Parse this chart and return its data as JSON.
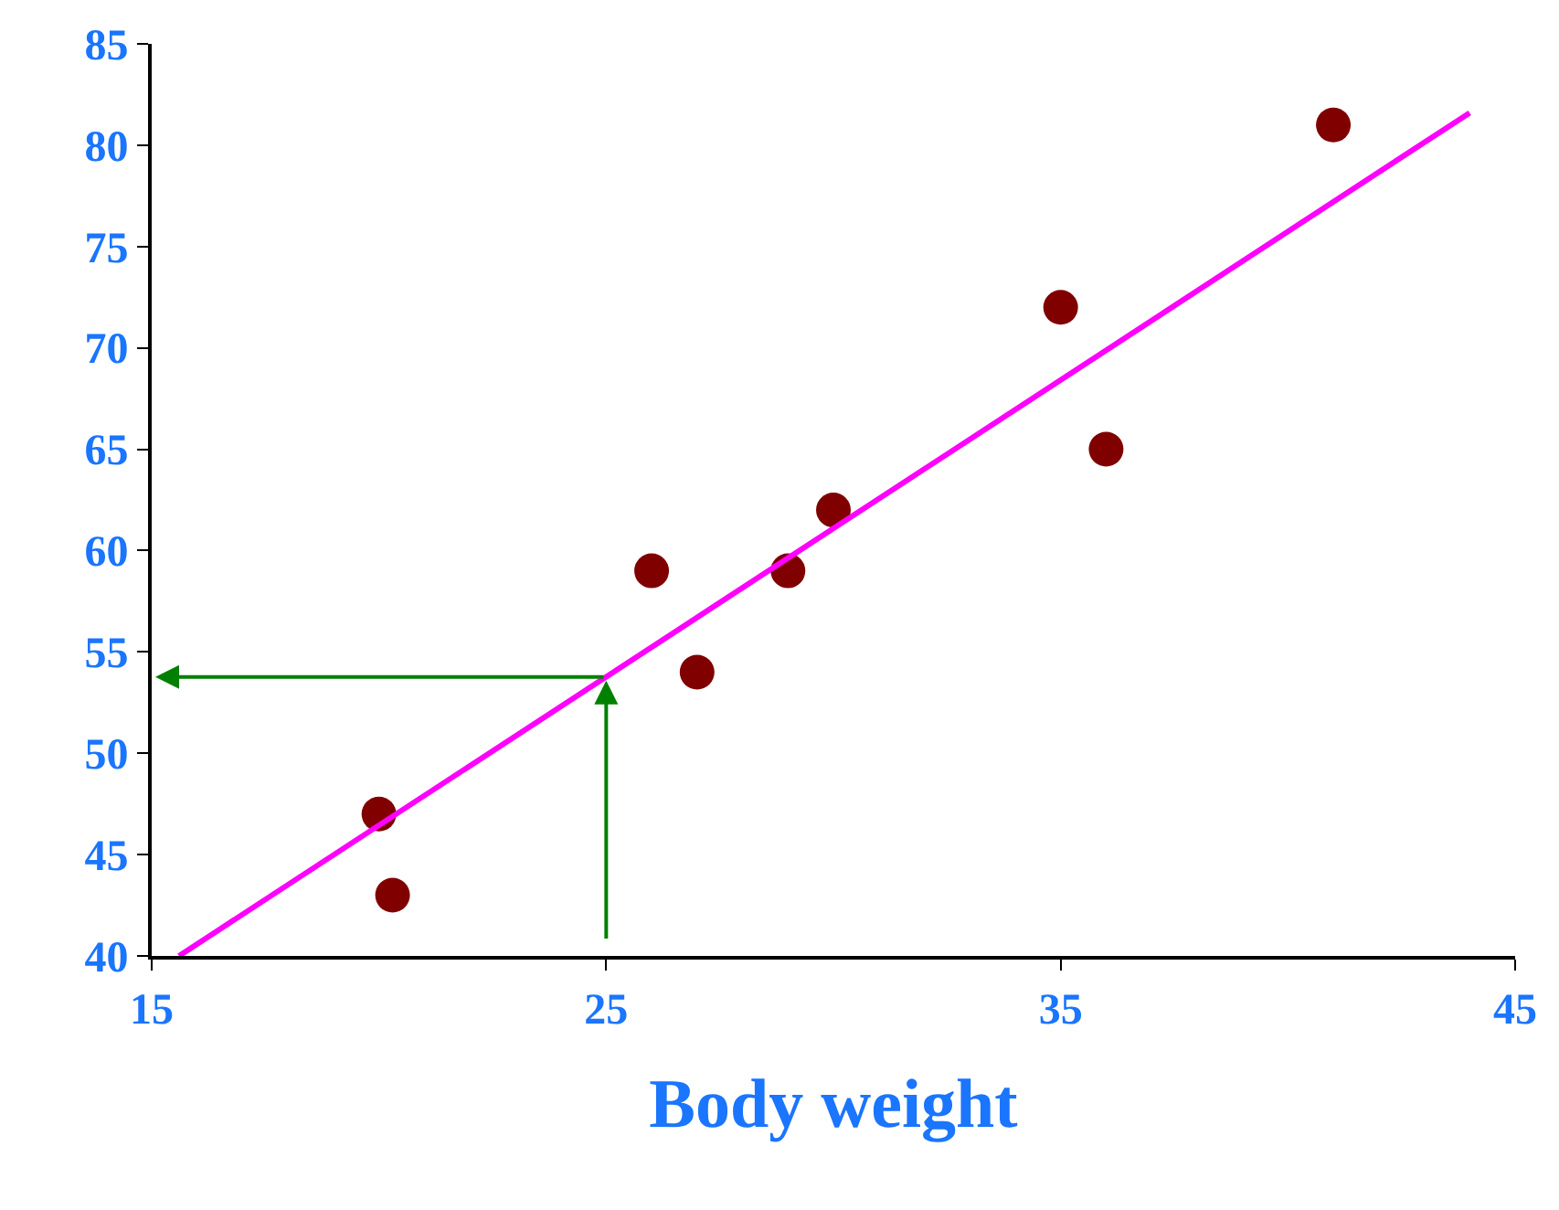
{
  "chart_data": {
    "type": "scatter",
    "xlabel": "Body weight",
    "xlim": [
      15,
      45
    ],
    "ylim": [
      40,
      85
    ],
    "xticks": [
      15,
      25,
      35,
      45
    ],
    "yticks": [
      40,
      45,
      50,
      55,
      60,
      65,
      70,
      75,
      80,
      85
    ],
    "series": [
      {
        "color": "#800000",
        "marker": "circle",
        "x": [
          20,
          20.3,
          26,
          27,
          29,
          30,
          35,
          36,
          41
        ],
        "values": [
          47,
          43,
          59,
          54,
          59,
          62,
          72,
          65,
          81
        ]
      },
      {
        "type": "line",
        "color": "#ff00ff",
        "marker": "none",
        "line_style": "solid",
        "x": [
          15.6,
          44
        ],
        "values": [
          40,
          81.6
        ]
      }
    ]
  }
}
